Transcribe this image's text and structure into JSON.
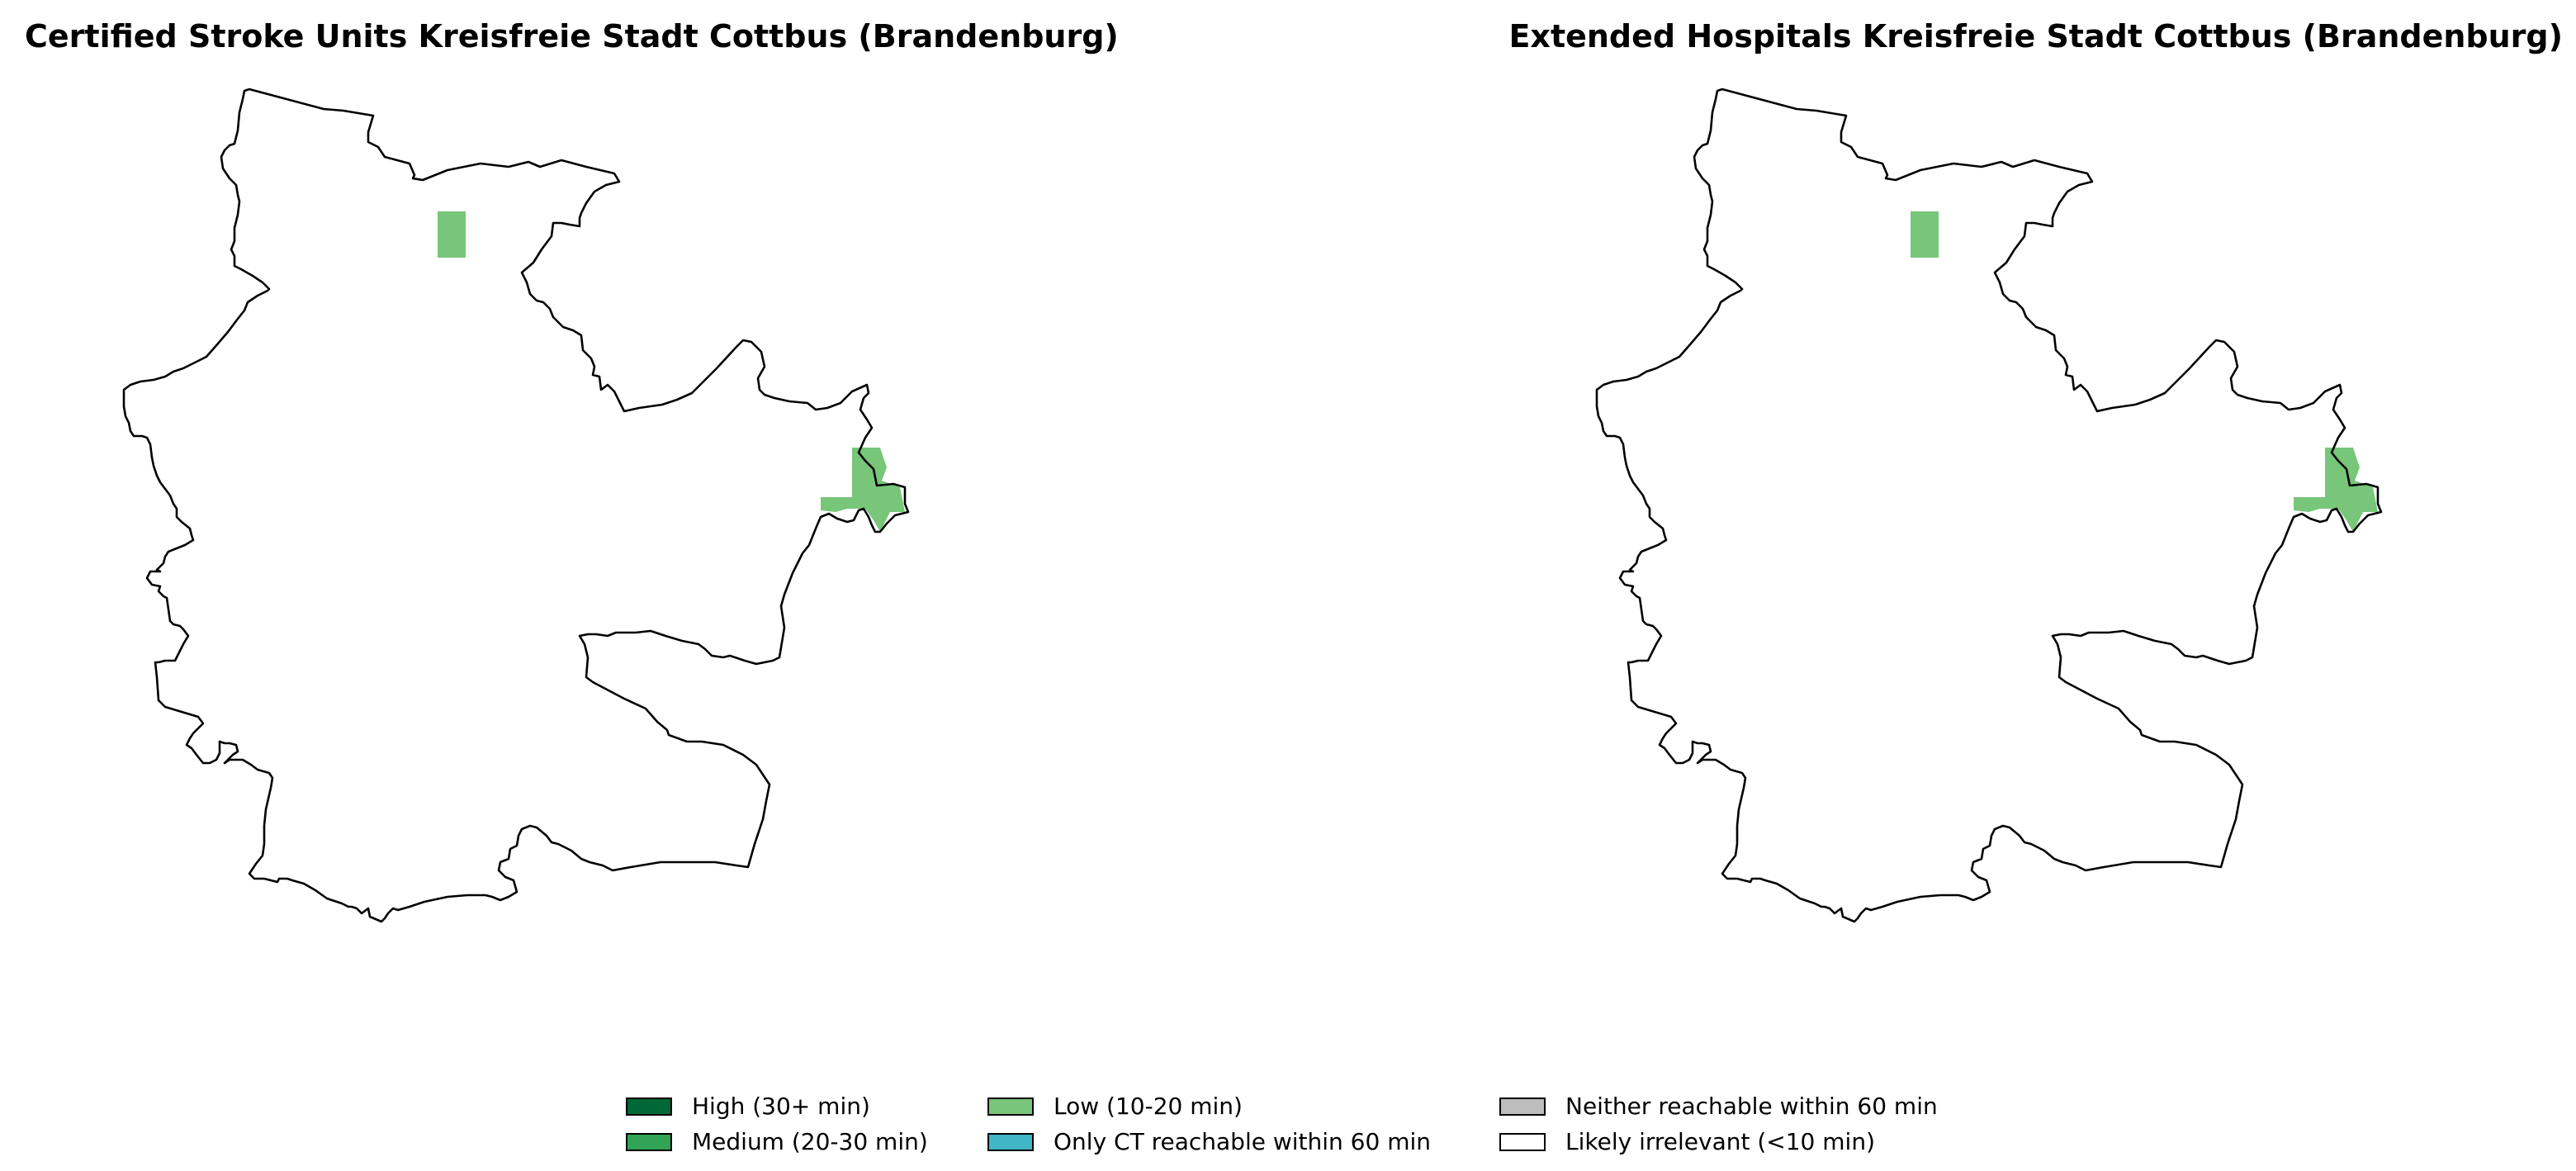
{
  "panels": [
    {
      "title": "Certified Stroke Units Kreisfreie Stadt Cottbus (Brandenburg)"
    },
    {
      "title": "Extended Hospitals Kreisfreie Stadt Cottbus (Brandenburg)"
    }
  ],
  "legend": {
    "items": [
      {
        "label": "High (30+ min)",
        "color": "#006837"
      },
      {
        "label": "Medium (20-30 min)",
        "color": "#31a354"
      },
      {
        "label": "Low (10-20 min)",
        "color": "#78c679"
      },
      {
        "label": "Only CT reachable within 60 min",
        "color": "#41b6c4"
      },
      {
        "label": "Neither reachable within 60 min",
        "color": "#bdbdbd"
      },
      {
        "label": "Likely irrelevant (<10 min)",
        "color": "#ffffff"
      }
    ]
  },
  "colors": {
    "boundary": "#000000",
    "low_fill": "#78c679"
  }
}
